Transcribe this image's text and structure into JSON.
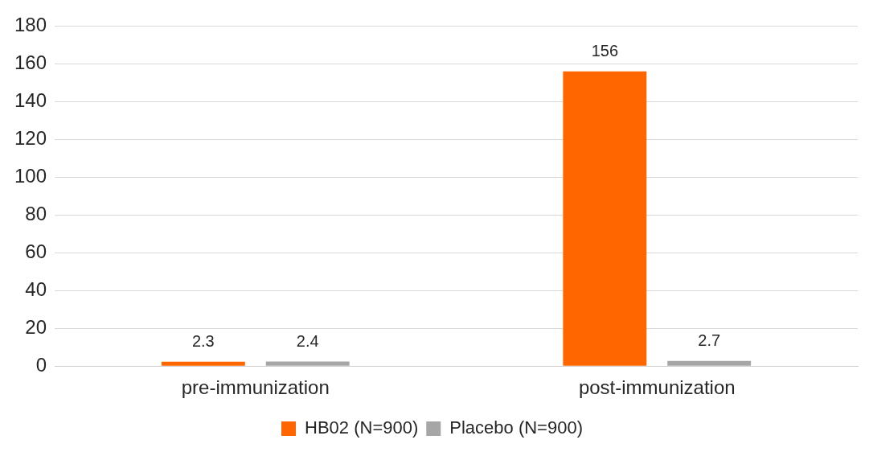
{
  "chart_data": {
    "type": "bar",
    "categories": [
      "pre-immunization",
      "post-immunization"
    ],
    "series": [
      {
        "name": "HB02 (N=900)",
        "color": "#ff6600",
        "values": [
          2.3,
          156
        ]
      },
      {
        "name": "Placebo (N=900)",
        "color": "#a6a6a6",
        "values": [
          2.4,
          2.7
        ]
      }
    ],
    "ylim": [
      0,
      180
    ],
    "yticks": [
      0,
      20,
      40,
      60,
      80,
      100,
      120,
      140,
      160,
      180
    ],
    "grid": "y",
    "legend": "bottom",
    "data_labels": true
  }
}
